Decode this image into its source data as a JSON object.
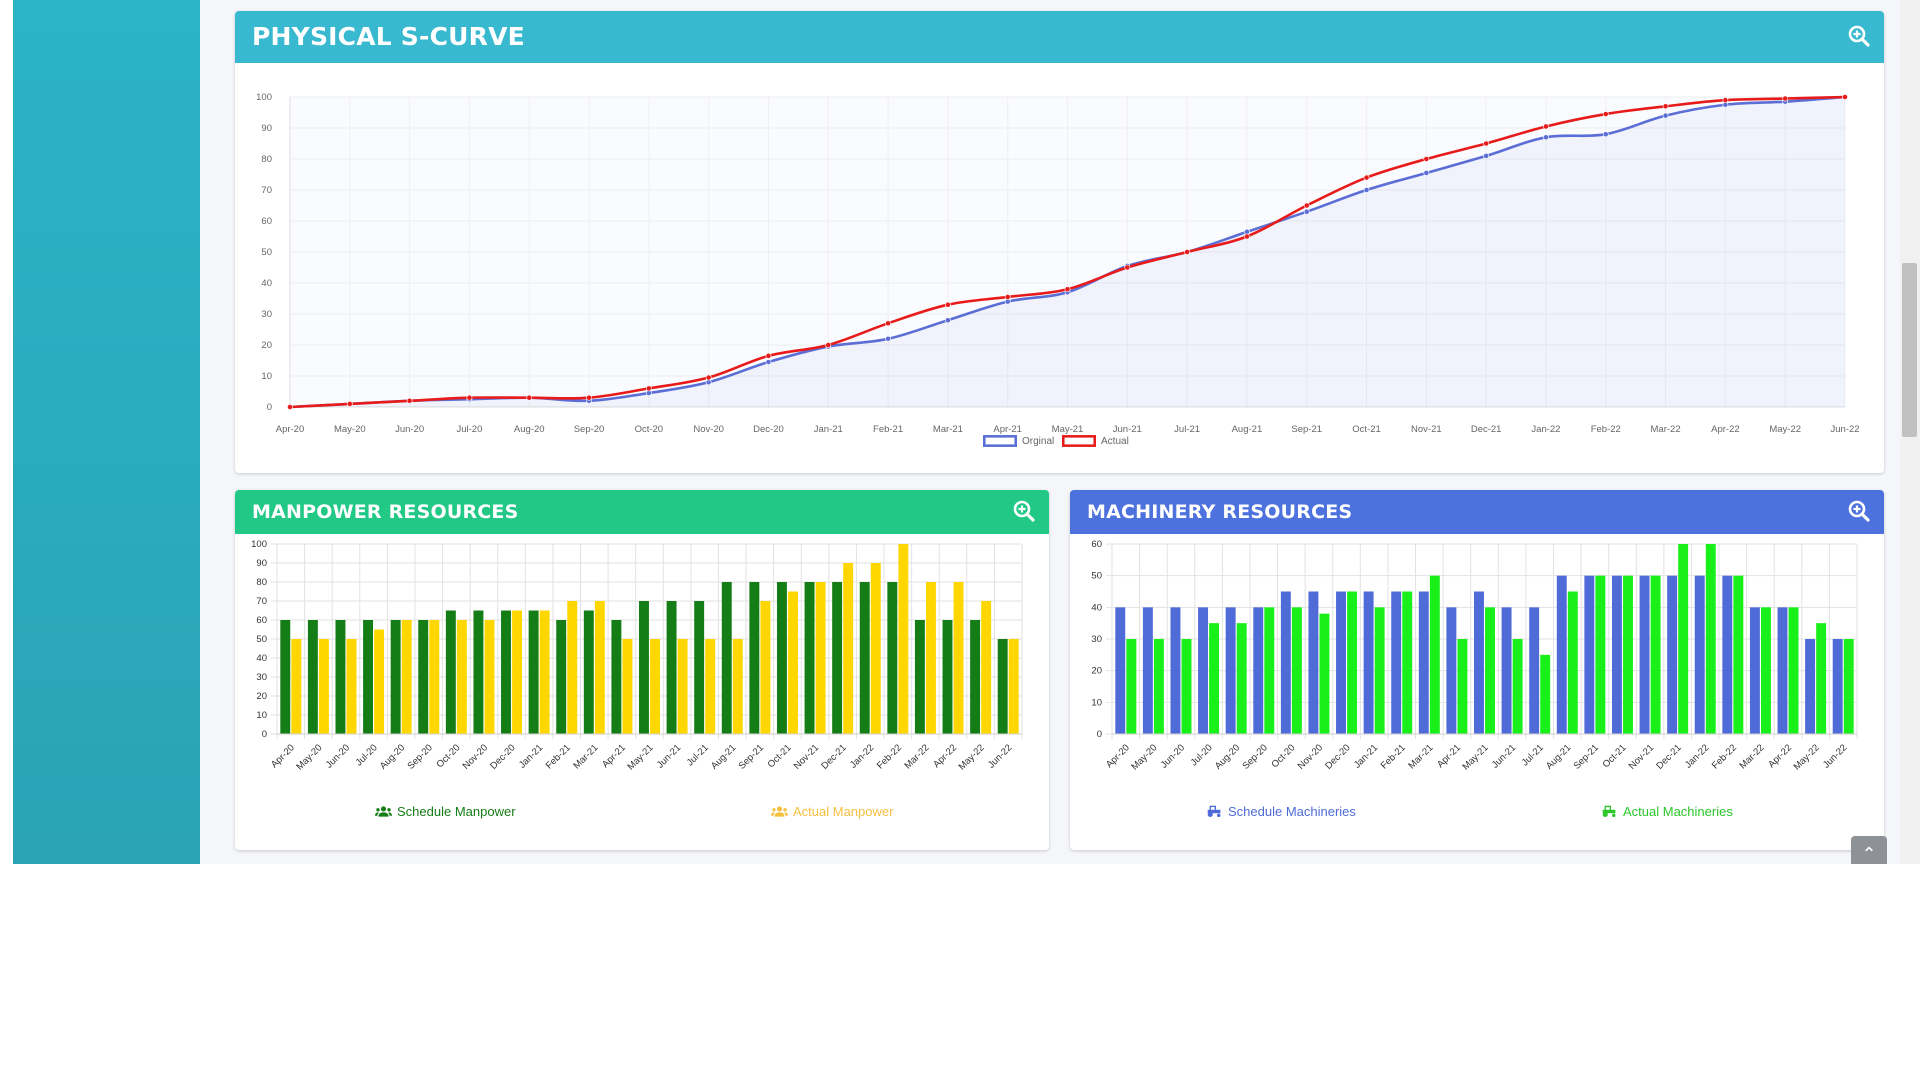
{
  "colors": {
    "scurve_header": "#39b9cf",
    "manpower_header": "#21c886",
    "machinery_header": "#4d72dd",
    "original_line": "#5b6ed6",
    "actual_line": "#e81b1b",
    "schedule_manpower": "#157d15",
    "actual_manpower": "#ffd700",
    "schedule_machinery": "#4f6bd8",
    "actual_machinery": "#19f019"
  },
  "header_icon": "search-plus-icon",
  "cards": {
    "scurve": {
      "title": "PHYSICAL S-CURVE"
    },
    "manpower": {
      "title": "MANPOWER RESOURCES"
    },
    "machinery": {
      "title": "MACHINERY RESOURCES"
    }
  },
  "chart_data": [
    {
      "id": "scurve",
      "type": "line",
      "title": "PHYSICAL S-CURVE",
      "x": [
        "Apr-20",
        "May-20",
        "Jun-20",
        "Jul-20",
        "Aug-20",
        "Sep-20",
        "Oct-20",
        "Nov-20",
        "Dec-20",
        "Jan-21",
        "Feb-21",
        "Mar-21",
        "Apr-21",
        "May-21",
        "Jun-21",
        "Jul-21",
        "Aug-21",
        "Sep-21",
        "Oct-21",
        "Nov-21",
        "Dec-21",
        "Jan-22",
        "Feb-22",
        "Mar-22",
        "Apr-22",
        "May-22",
        "Jun-22"
      ],
      "series": [
        {
          "name": "Orginal",
          "values": [
            0,
            1,
            2,
            2.5,
            3,
            2,
            4.5,
            8,
            14.5,
            19.5,
            22,
            28,
            34,
            37,
            45.5,
            50,
            56.5,
            63,
            70,
            75.5,
            81,
            87,
            88,
            94,
            97.5,
            98.5,
            100
          ]
        },
        {
          "name": "Actual",
          "values": [
            0,
            1,
            2,
            3,
            3,
            3,
            6,
            9.5,
            16.5,
            20,
            27,
            33,
            35.5,
            38,
            45,
            50,
            55,
            65,
            74,
            80,
            85,
            90.5,
            94.5,
            97,
            99,
            99.5,
            100
          ]
        }
      ],
      "y_ticks": [
        0,
        10,
        20,
        30,
        40,
        50,
        60,
        70,
        80,
        90,
        100
      ],
      "ylim": [
        0,
        100
      ],
      "grid": true,
      "legend_position": "bottom-center"
    },
    {
      "id": "manpower",
      "type": "bar",
      "title": "MANPOWER RESOURCES",
      "categories": [
        "Apr-20",
        "May-20",
        "Jun-20",
        "Jul-20",
        "Aug-20",
        "Sep-20",
        "Oct-20",
        "Nov-20",
        "Dec-20",
        "Jan-21",
        "Feb-21",
        "Mar-21",
        "Apr-21",
        "May-21",
        "Jun-21",
        "Jul-21",
        "Aug-21",
        "Sep-21",
        "Oct-21",
        "Nov-21",
        "Dec-21",
        "Jan-22",
        "Feb-22",
        "Mar-22",
        "Apr-22",
        "May-22",
        "Jun-22"
      ],
      "series": [
        {
          "name": "Schedule Manpower",
          "values": [
            60,
            60,
            60,
            60,
            60,
            60,
            65,
            65,
            65,
            65,
            60,
            65,
            60,
            70,
            70,
            70,
            80,
            80,
            80,
            80,
            80,
            80,
            80,
            60,
            60,
            60,
            50
          ]
        },
        {
          "name": "Actual Manpower",
          "values": [
            50,
            50,
            50,
            55,
            60,
            60,
            60,
            60,
            65,
            65,
            70,
            70,
            50,
            50,
            50,
            50,
            50,
            70,
            75,
            80,
            90,
            90,
            100,
            80,
            80,
            70,
            50
          ]
        }
      ],
      "y_ticks": [
        0,
        10,
        20,
        30,
        40,
        50,
        60,
        70,
        80,
        90,
        100
      ],
      "ylim": [
        0,
        100
      ],
      "grid": true,
      "legend_position": "bottom"
    },
    {
      "id": "machinery",
      "type": "bar",
      "title": "MACHINERY RESOURCES",
      "categories": [
        "Apr-20",
        "May-20",
        "Jun-20",
        "Jul-20",
        "Aug-20",
        "Sep-20",
        "Oct-20",
        "Nov-20",
        "Dec-20",
        "Jan-21",
        "Feb-21",
        "Mar-21",
        "Apr-21",
        "May-21",
        "Jun-21",
        "Jul-21",
        "Aug-21",
        "Sep-21",
        "Oct-21",
        "Nov-21",
        "Dec-21",
        "Jan-22",
        "Feb-22",
        "Mar-22",
        "Apr-22",
        "May-22",
        "Jun-22"
      ],
      "series": [
        {
          "name": "Schedule Machineries",
          "values": [
            40,
            40,
            40,
            40,
            40,
            40,
            45,
            45,
            45,
            45,
            45,
            45,
            40,
            45,
            40,
            40,
            50,
            50,
            50,
            50,
            50,
            50,
            50,
            40,
            40,
            30,
            30
          ]
        },
        {
          "name": "Actual Machineries",
          "values": [
            30,
            30,
            30,
            35,
            35,
            40,
            40,
            38,
            45,
            40,
            45,
            50,
            30,
            40,
            30,
            25,
            45,
            50,
            50,
            50,
            60,
            60,
            50,
            40,
            40,
            35,
            30
          ]
        }
      ],
      "y_ticks": [
        0,
        10,
        20,
        30,
        40,
        50,
        60
      ],
      "ylim": [
        0,
        60
      ],
      "grid": true,
      "legend_position": "bottom"
    }
  ]
}
